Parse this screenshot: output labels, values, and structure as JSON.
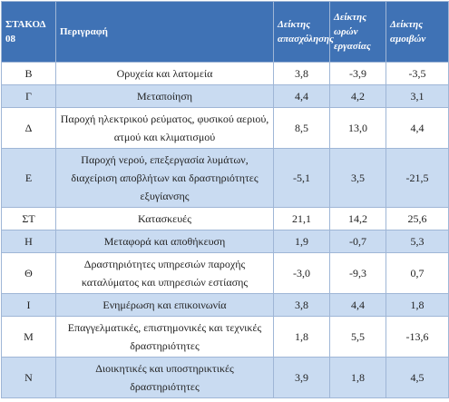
{
  "table": {
    "header": [
      "ΣΤΑΚΟΔ 08",
      "Περιγραφή",
      "Δείκτης απασχόλησης",
      "Δείκτης ωρών εργασίας",
      "Δείκτης αμοιβών"
    ],
    "rows": [
      [
        "B",
        "Ορυχεία και λατομεία",
        "3,8",
        "-3,9",
        "-3,5"
      ],
      [
        "Γ",
        "Μεταποίηση",
        "4,4",
        "4,2",
        "3,1"
      ],
      [
        "Δ",
        "Παροχή ηλεκτρικού ρεύματος, φυσικού αεριού, ατμού και κλιματισμού",
        "8,5",
        "13,0",
        "4,4"
      ],
      [
        "Ε",
        "Παροχή νερού, επεξεργασία λυμάτων, διαχείριση αποβλήτων και δραστηριότητες εξυγίανσης",
        "-5,1",
        "3,5",
        "-21,5"
      ],
      [
        "ΣΤ",
        "Κατασκευές",
        "21,1",
        "14,2",
        "25,6"
      ],
      [
        "Η",
        "Μεταφορά και αποθήκευση",
        "1,9",
        "-0,7",
        "5,3"
      ],
      [
        "Θ",
        "Δραστηριότητες υπηρεσιών παροχής καταλύματος και υπηρεσιών εστίασης",
        "-3,0",
        "-9,3",
        "0,7"
      ],
      [
        "Ι",
        "Ενημέρωση και επικοινωνία",
        "3,8",
        "4,4",
        "1,8"
      ],
      [
        "Μ",
        "Επαγγελματικές, επιστημονικές και τεχνικές δραστηριότητες",
        "1,8",
        "5,5",
        "-13,6"
      ],
      [
        "Ν",
        "Διοικητικές και υποστηρικτικές δραστηριότητες",
        "3,9",
        "1,8",
        "4,5"
      ]
    ]
  }
}
